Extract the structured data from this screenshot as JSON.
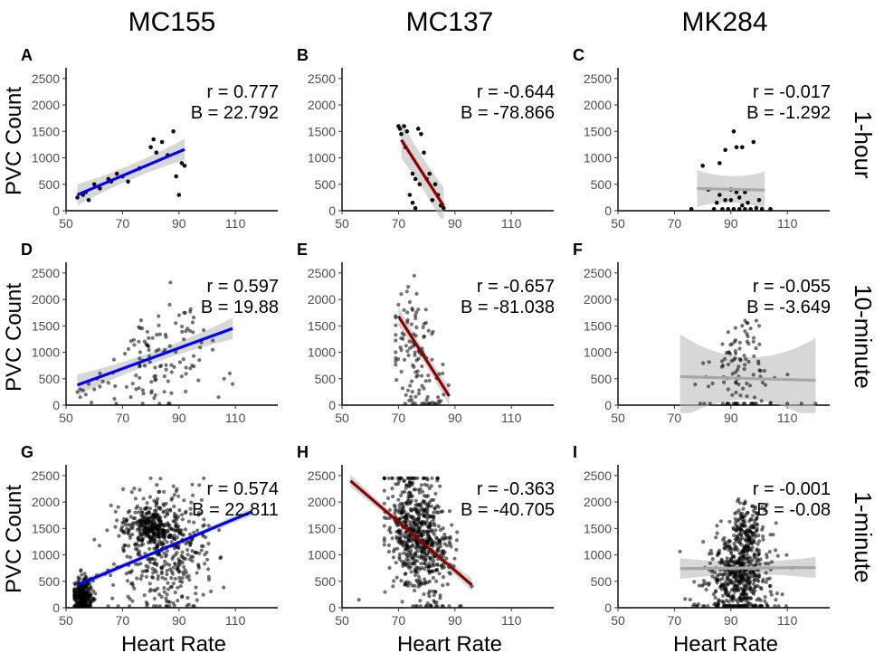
{
  "figure": {
    "columns": [
      "MC155",
      "MC137",
      "MK284"
    ],
    "rows": [
      "1-hour",
      "10-minute",
      "1-minute"
    ],
    "xlabel": "Heart Rate",
    "ylabel": "PVC Count"
  },
  "chart_data": [
    {
      "type": "scatter",
      "label": "A",
      "patient": "MC155",
      "interval": "1-hour",
      "xlim": [
        50,
        125
      ],
      "ylim": [
        0,
        2600
      ],
      "xticks": [
        50,
        70,
        90,
        110
      ],
      "yticks": [
        0,
        500,
        1000,
        1500,
        2000,
        2500
      ],
      "stats": [
        "r = 0.777",
        "B = 22.792"
      ],
      "fit": {
        "color": "#0000ee",
        "x": [
          54,
          92
        ],
        "y": [
          300,
          1160
        ],
        "band": [
          140,
          200
        ]
      },
      "points": {
        "count": 22,
        "x": [
          54,
          56,
          57,
          58,
          60,
          62,
          65,
          66,
          68,
          70,
          72,
          76,
          80,
          81,
          82,
          84,
          86,
          88,
          89,
          90,
          91,
          92
        ],
        "y": [
          250,
          300,
          350,
          200,
          500,
          420,
          600,
          550,
          700,
          650,
          550,
          800,
          1200,
          1350,
          1100,
          1300,
          1050,
          1500,
          650,
          300,
          900,
          850
        ]
      }
    },
    {
      "type": "scatter",
      "label": "B",
      "patient": "MC137",
      "interval": "1-hour",
      "xlim": [
        50,
        125
      ],
      "ylim": [
        0,
        2600
      ],
      "xticks": [
        50,
        70,
        90,
        110
      ],
      "yticks": [
        0,
        500,
        1000,
        1500,
        2000,
        2500
      ],
      "stats": [
        "r = -0.644",
        "B = -78.866"
      ],
      "fit": {
        "color": "#8b0000",
        "x": [
          71,
          86
        ],
        "y": [
          1340,
          90
        ],
        "band": [
          300,
          350
        ]
      },
      "points": {
        "count": 22,
        "x": [
          70,
          70.5,
          71,
          72,
          72.5,
          73,
          74,
          75,
          75,
          76,
          76,
          77,
          77.5,
          78,
          79,
          80,
          81,
          82,
          83,
          84,
          85,
          86
        ],
        "y": [
          1600,
          1550,
          1450,
          1600,
          1200,
          1500,
          300,
          700,
          150,
          600,
          50,
          1550,
          500,
          1450,
          1100,
          600,
          700,
          200,
          500,
          300,
          100,
          50
        ]
      }
    },
    {
      "type": "scatter",
      "label": "C",
      "patient": "MK284",
      "interval": "1-hour",
      "xlim": [
        50,
        125
      ],
      "ylim": [
        0,
        2600
      ],
      "xticks": [
        50,
        70,
        90,
        110
      ],
      "yticks": [
        0,
        500,
        1000,
        1500,
        2000,
        2500
      ],
      "stats": [
        "r = -0.017",
        "B = -1.292"
      ],
      "fit": {
        "color": "#a6a6a6",
        "x": [
          78,
          102
        ],
        "y": [
          420,
          390
        ],
        "band": [
          250,
          350
        ]
      },
      "points": {
        "count": 30,
        "x": [
          76,
          80,
          82,
          84,
          85,
          86,
          86,
          87,
          88,
          88,
          89,
          90,
          90,
          91,
          91,
          92,
          92,
          93,
          93,
          94,
          94,
          95,
          95,
          96,
          97,
          98,
          99,
          100,
          101,
          104
        ],
        "y": [
          30,
          850,
          400,
          30,
          150,
          900,
          300,
          30,
          200,
          1150,
          30,
          400,
          200,
          1500,
          30,
          1200,
          350,
          30,
          250,
          1200,
          100,
          30,
          350,
          150,
          30,
          1300,
          50,
          200,
          30,
          30
        ]
      }
    },
    {
      "type": "scatter",
      "label": "D",
      "patient": "MC155",
      "interval": "10-minute",
      "xlim": [
        50,
        125
      ],
      "ylim": [
        0,
        2600
      ],
      "xticks": [
        50,
        70,
        90,
        110
      ],
      "yticks": [
        0,
        500,
        1000,
        1500,
        2000,
        2500
      ],
      "stats": [
        "r = 0.597",
        "B = 19.88"
      ],
      "fit": {
        "color": "#0000ee",
        "x": [
          54,
          109
        ],
        "y": [
          380,
          1450
        ],
        "band": [
          110,
          200
        ]
      },
      "points": {
        "count": 130,
        "cluster": {
          "cx": 84,
          "sx": 9,
          "cy": 1000,
          "sy": 500,
          "xmin": 54,
          "xmax": 109
        },
        "extra_x": [
          54,
          55,
          55,
          56,
          57,
          58,
          59,
          60,
          61,
          62,
          62,
          63,
          65,
          104,
          106,
          108,
          109
        ],
        "extra_y": [
          250,
          300,
          150,
          280,
          200,
          400,
          50,
          300,
          500,
          350,
          600,
          450,
          420,
          150,
          500,
          600,
          400
        ]
      }
    },
    {
      "type": "scatter",
      "label": "E",
      "patient": "MC137",
      "interval": "10-minute",
      "xlim": [
        50,
        125
      ],
      "ylim": [
        0,
        2600
      ],
      "xticks": [
        50,
        70,
        90,
        110
      ],
      "yticks": [
        0,
        500,
        1000,
        1500,
        2000,
        2500
      ],
      "stats": [
        "r = -0.657",
        "B = -81.038"
      ],
      "fit": {
        "color": "#8b0000",
        "x": [
          70,
          88
        ],
        "y": [
          1680,
          170
        ],
        "band": [
          120,
          180
        ]
      },
      "points": {
        "count": 120,
        "cluster": {
          "cx": 76,
          "sx": 4.5,
          "cy": 950,
          "sy": 600,
          "xmin": 69,
          "xmax": 88
        },
        "extra_x": [
          70,
          71,
          72,
          73,
          74,
          75,
          76,
          80,
          82,
          84,
          85,
          86
        ],
        "extra_y": [
          1900,
          2100,
          1800,
          2150,
          1950,
          1800,
          1700,
          100,
          50,
          150,
          80,
          200
        ]
      }
    },
    {
      "type": "scatter",
      "label": "F",
      "patient": "MK284",
      "interval": "10-minute",
      "xlim": [
        50,
        125
      ],
      "ylim": [
        0,
        2600
      ],
      "xticks": [
        50,
        70,
        90,
        110
      ],
      "yticks": [
        0,
        500,
        1000,
        1500,
        2000,
        2500
      ],
      "stats": [
        "r = -0.055",
        "B = -3.649"
      ],
      "fit": {
        "color": "#a6a6a6",
        "x": [
          72,
          120
        ],
        "y": [
          540,
          470
        ],
        "band": [
          400,
          800
        ]
      },
      "points": {
        "count": 110,
        "cluster": {
          "cx": 93,
          "sx": 6,
          "cy": 550,
          "sy": 500,
          "xmin": 72,
          "xmax": 120
        },
        "extra_x": [
          94,
          95,
          95,
          96,
          96,
          97,
          98,
          99,
          100,
          110,
          115,
          120
        ],
        "extra_y": [
          1500,
          1600,
          1400,
          1550,
          1300,
          1450,
          1200,
          1600,
          1500,
          30,
          30,
          30
        ]
      }
    },
    {
      "type": "scatter",
      "label": "G",
      "patient": "MC155",
      "interval": "1-minute",
      "xlim": [
        50,
        125
      ],
      "ylim": [
        0,
        2600
      ],
      "xticks": [
        50,
        70,
        90,
        110
      ],
      "yticks": [
        0,
        500,
        1000,
        1500,
        2000,
        2500
      ],
      "stats": [
        "r = 0.574",
        "B = 22.811"
      ],
      "fit": {
        "color": "#0000ee",
        "x": [
          54,
          116
        ],
        "y": [
          430,
          1820
        ],
        "band": [
          40,
          80
        ]
      },
      "points": {
        "count": 900,
        "clusters": [
          {
            "n": 250,
            "cx": 56,
            "sx": 1.8,
            "cy": 220,
            "sy": 180,
            "xmin": 53,
            "xmax": 64
          },
          {
            "n": 250,
            "cx": 80,
            "sx": 4,
            "cy": 1550,
            "sy": 180,
            "xmin": 68,
            "xmax": 95
          },
          {
            "n": 400,
            "cx": 85,
            "sx": 9,
            "cy": 1100,
            "sy": 600,
            "xmin": 60,
            "xmax": 116
          }
        ]
      }
    },
    {
      "type": "scatter",
      "label": "H",
      "patient": "MC137",
      "interval": "1-minute",
      "xlim": [
        50,
        125
      ],
      "ylim": [
        0,
        2600
      ],
      "xticks": [
        50,
        70,
        90,
        110
      ],
      "yticks": [
        0,
        500,
        1000,
        1500,
        2000,
        2500
      ],
      "stats": [
        "r = -0.363",
        "B = -40.705"
      ],
      "fit": {
        "color": "#8b0000",
        "x": [
          53,
          96
        ],
        "y": [
          2400,
          430
        ],
        "band": [
          60,
          120
        ]
      },
      "points": {
        "count": 650,
        "cluster": {
          "cx": 77,
          "sx": 5.5,
          "cy": 1350,
          "sy": 580,
          "xmin": 65,
          "xmax": 96
        },
        "extra_x": [
          56
        ],
        "extra_y": [
          150
        ]
      }
    },
    {
      "type": "scatter",
      "label": "I",
      "patient": "MK284",
      "interval": "1-minute",
      "xlim": [
        50,
        125
      ],
      "ylim": [
        0,
        2600
      ],
      "xticks": [
        50,
        70,
        90,
        110
      ],
      "yticks": [
        0,
        500,
        1000,
        1500,
        2000,
        2500
      ],
      "stats": [
        "r = -0.001",
        "B = -0.08"
      ],
      "fit": {
        "color": "#a6a6a6",
        "x": [
          72,
          120
        ],
        "y": [
          740,
          760
        ],
        "band": [
          120,
          200
        ]
      },
      "points": {
        "count": 650,
        "clusters": [
          {
            "n": 300,
            "cx": 94,
            "sx": 4,
            "cy": 850,
            "sy": 500,
            "xmin": 80,
            "xmax": 106
          },
          {
            "n": 250,
            "cx": 92,
            "sx": 7,
            "cy": 350,
            "sy": 350,
            "xmin": 72,
            "xmax": 122
          },
          {
            "n": 100,
            "cx": 96,
            "sx": 2.5,
            "cy": 1450,
            "sy": 250,
            "xmin": 88,
            "xmax": 104
          }
        ]
      }
    }
  ]
}
